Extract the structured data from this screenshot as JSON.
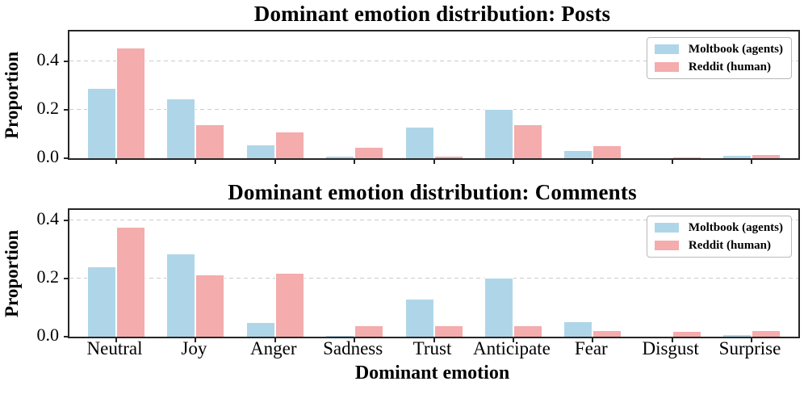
{
  "chart_data": [
    {
      "type": "bar",
      "title": "Dominant emotion distribution: Posts",
      "xlabel": "",
      "ylabel": "Proportion",
      "categories": [
        "Neutral",
        "Joy",
        "Anger",
        "Sadness",
        "Trust",
        "Anticipate",
        "Fear",
        "Disgust",
        "Surprise"
      ],
      "series": [
        {
          "name": "Moltbook (agents)",
          "color": "#afd6e8",
          "values": [
            0.29,
            0.245,
            0.055,
            0.01,
            0.13,
            0.202,
            0.032,
            0.002,
            0.012
          ]
        },
        {
          "name": "Reddit (human)",
          "color": "#f4acac",
          "values": [
            0.455,
            0.14,
            0.11,
            0.046,
            0.01,
            0.14,
            0.054,
            0.006,
            0.016
          ]
        }
      ],
      "yticks": [
        "0.0",
        "0.2",
        "0.4"
      ],
      "ylim": [
        0,
        0.522
      ],
      "grid": true,
      "legend_position": "upper right",
      "show_xticklabels": false
    },
    {
      "type": "bar",
      "title": "Dominant emotion distribution: Comments",
      "xlabel": "Dominant emotion",
      "ylabel": "Proportion",
      "categories": [
        "Neutral",
        "Joy",
        "Anger",
        "Sadness",
        "Trust",
        "Anticipate",
        "Fear",
        "Disgust",
        "Surprise"
      ],
      "series": [
        {
          "name": "Moltbook (agents)",
          "color": "#afd6e8",
          "values": [
            0.24,
            0.285,
            0.05,
            0.006,
            0.13,
            0.201,
            0.054,
            0.003,
            0.009
          ]
        },
        {
          "name": "Reddit (human)",
          "color": "#f4acac",
          "values": [
            0.378,
            0.214,
            0.219,
            0.04,
            0.038,
            0.038,
            0.021,
            0.019,
            0.023
          ]
        }
      ],
      "yticks": [
        "0.0",
        "0.2",
        "0.4"
      ],
      "ylim": [
        0,
        0.435
      ],
      "grid": true,
      "legend_position": "upper right",
      "show_xticklabels": true
    }
  ],
  "style": {
    "grid_color": "#cbcbcb",
    "spine_color": "#262626",
    "background": "#ffffff"
  }
}
